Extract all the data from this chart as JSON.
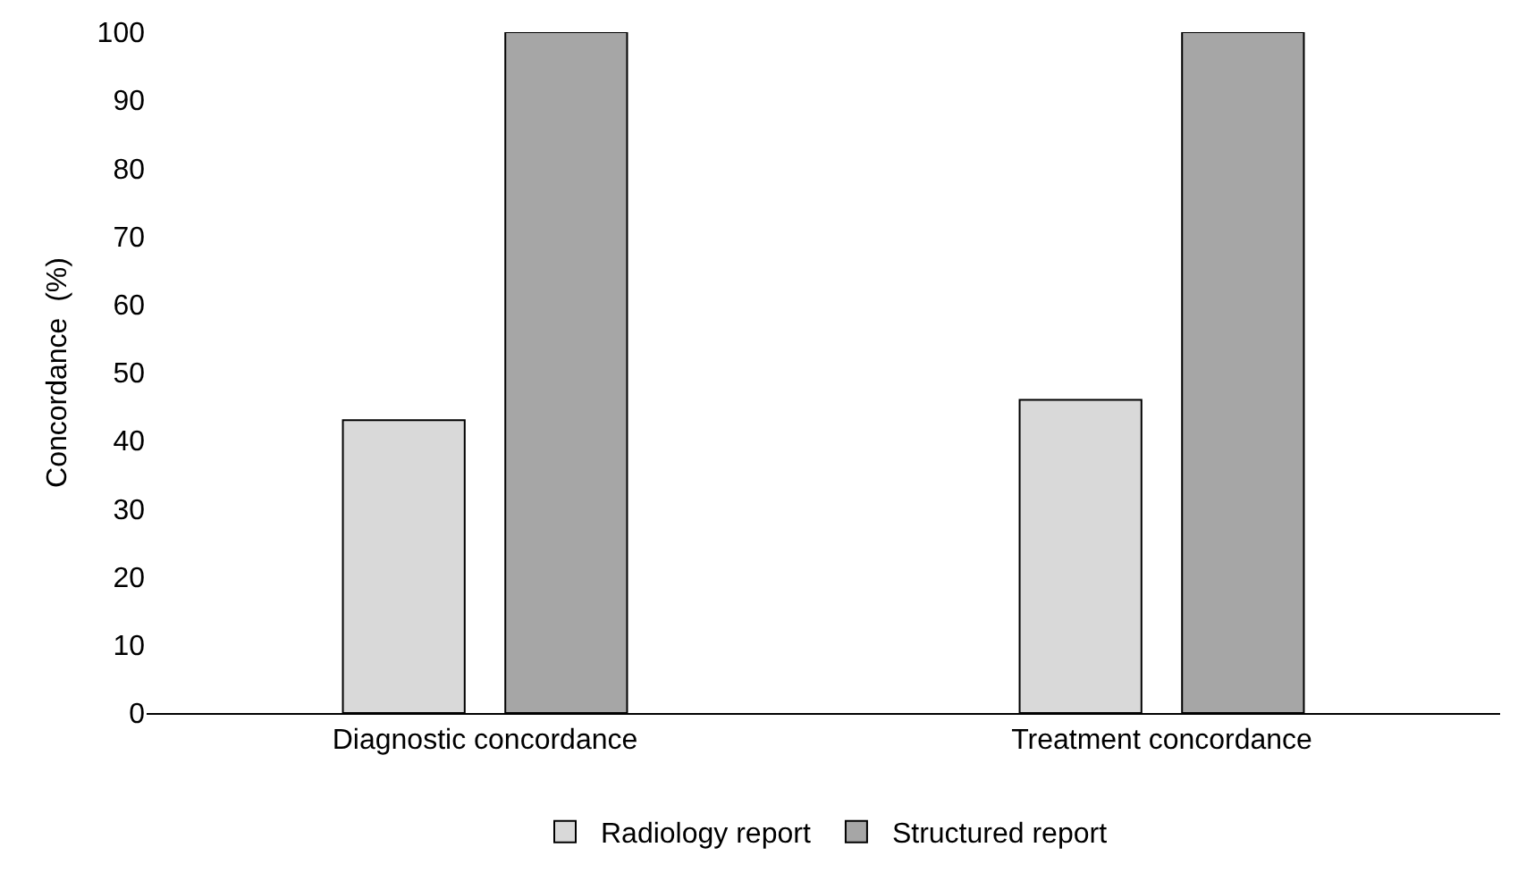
{
  "chart_data": {
    "type": "bar",
    "ylabel": "Concordance  (%)",
    "categories": [
      "Diagnostic concordance",
      "Treatment concordance"
    ],
    "series": [
      {
        "name": "Radiology report",
        "color": "#d9d9d9",
        "values": [
          43,
          46
        ]
      },
      {
        "name": "Structured report",
        "color": "#a6a6a6",
        "values": [
          100,
          100
        ]
      }
    ],
    "ylim": [
      0,
      100
    ],
    "yticks": [
      0,
      10,
      20,
      30,
      40,
      50,
      60,
      70,
      80,
      90,
      100
    ],
    "grid": false,
    "legend": "bottom"
  }
}
